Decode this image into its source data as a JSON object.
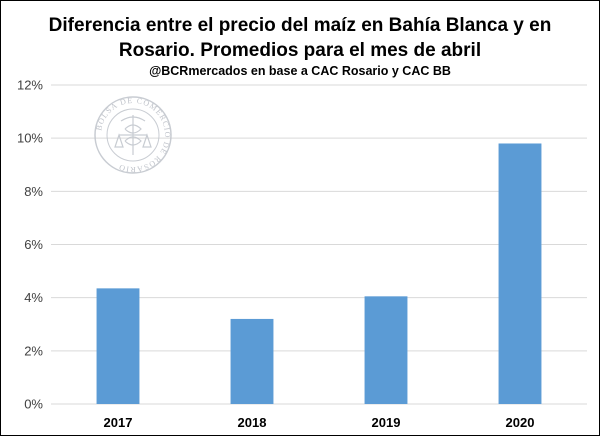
{
  "chart_data": {
    "type": "bar",
    "title_line1": "Diferencia entre el precio del maíz en Bahía Blanca y en",
    "title_line2": "Rosario. Promedios para el mes de abril",
    "subtitle": "@BCRmercados  en  base a CAC Rosario y CAC BB",
    "categories": [
      "2017",
      "2018",
      "2019",
      "2020"
    ],
    "values": [
      0.0435,
      0.032,
      0.0405,
      0.098
    ],
    "ylim": [
      0,
      0.12
    ],
    "yticks": [
      "0%",
      "2%",
      "4%",
      "6%",
      "8%",
      "10%",
      "12%"
    ],
    "xlabel": "",
    "ylabel": "",
    "grid": true,
    "bar_color": "#5b9bd5",
    "legend": "none"
  },
  "watermark": {
    "text": "BOLSA DE COMERCIO DE ROSARIO",
    "color": "#b8bcc4"
  }
}
